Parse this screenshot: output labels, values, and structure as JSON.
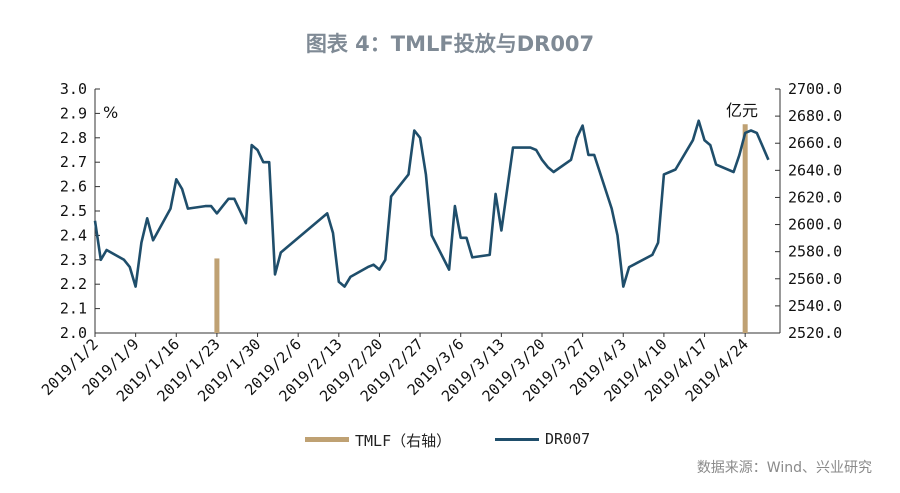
{
  "title": "图表 4：TMLF投放与DR007",
  "source": "数据来源：Wind、兴业研究",
  "chart_data": {
    "type": "line",
    "left_unit": "%",
    "right_unit": "亿元",
    "y_left": {
      "min": 2.0,
      "max": 3.0,
      "ticks": [
        "2.0",
        "2.1",
        "2.2",
        "2.3",
        "2.4",
        "2.5",
        "2.6",
        "2.7",
        "2.8",
        "2.9",
        "3.0"
      ]
    },
    "y_right": {
      "min": 2520,
      "max": 2700,
      "ticks": [
        "2520.0",
        "2540.0",
        "2560.0",
        "2580.0",
        "2600.0",
        "2620.0",
        "2640.0",
        "2660.0",
        "2680.0",
        "2700.0"
      ]
    },
    "x_ticks": [
      "2019/1/2",
      "2019/1/9",
      "2019/1/16",
      "2019/1/23",
      "2019/1/30",
      "2019/2/6",
      "2019/2/13",
      "2019/2/20",
      "2019/2/27",
      "2019/3/6",
      "2019/3/13",
      "2019/3/20",
      "2019/3/27",
      "2019/4/3",
      "2019/4/10",
      "2019/4/17",
      "2019/4/24"
    ],
    "x_range": [
      "2019/1/2",
      "2019/4/30"
    ],
    "series": [
      {
        "name": "TMLF（右轴）",
        "kind": "bar",
        "axis": "right",
        "color": "#bfa173",
        "points": [
          {
            "x": "2019/1/23",
            "y": 2575
          },
          {
            "x": "2019/4/24",
            "y": 2674
          }
        ]
      },
      {
        "name": "DR007",
        "kind": "line",
        "axis": "left",
        "color": "#1f4e6b",
        "points": [
          {
            "x": "2019/1/2",
            "y": 2.46
          },
          {
            "x": "2019/1/3",
            "y": 2.3
          },
          {
            "x": "2019/1/4",
            "y": 2.34
          },
          {
            "x": "2019/1/7",
            "y": 2.3
          },
          {
            "x": "2019/1/8",
            "y": 2.27
          },
          {
            "x": "2019/1/9",
            "y": 2.19
          },
          {
            "x": "2019/1/10",
            "y": 2.37
          },
          {
            "x": "2019/1/11",
            "y": 2.47
          },
          {
            "x": "2019/1/12",
            "y": 2.38
          },
          {
            "x": "2019/1/15",
            "y": 2.51
          },
          {
            "x": "2019/1/16",
            "y": 2.63
          },
          {
            "x": "2019/1/17",
            "y": 2.59
          },
          {
            "x": "2019/1/18",
            "y": 2.51
          },
          {
            "x": "2019/1/21",
            "y": 2.52
          },
          {
            "x": "2019/1/22",
            "y": 2.52
          },
          {
            "x": "2019/1/23",
            "y": 2.49
          },
          {
            "x": "2019/1/24",
            "y": 2.52
          },
          {
            "x": "2019/1/25",
            "y": 2.55
          },
          {
            "x": "2019/1/26",
            "y": 2.55
          },
          {
            "x": "2019/1/28",
            "y": 2.45
          },
          {
            "x": "2019/1/29",
            "y": 2.77
          },
          {
            "x": "2019/1/30",
            "y": 2.75
          },
          {
            "x": "2019/1/31",
            "y": 2.7
          },
          {
            "x": "2019/2/1",
            "y": 2.7
          },
          {
            "x": "2019/2/2",
            "y": 2.24
          },
          {
            "x": "2019/2/3",
            "y": 2.33
          },
          {
            "x": "2019/2/11",
            "y": 2.49
          },
          {
            "x": "2019/2/12",
            "y": 2.41
          },
          {
            "x": "2019/2/13",
            "y": 2.21
          },
          {
            "x": "2019/2/14",
            "y": 2.19
          },
          {
            "x": "2019/2/15",
            "y": 2.23
          },
          {
            "x": "2019/2/18",
            "y": 2.27
          },
          {
            "x": "2019/2/19",
            "y": 2.28
          },
          {
            "x": "2019/2/20",
            "y": 2.26
          },
          {
            "x": "2019/2/21",
            "y": 2.3
          },
          {
            "x": "2019/2/22",
            "y": 2.56
          },
          {
            "x": "2019/2/25",
            "y": 2.65
          },
          {
            "x": "2019/2/26",
            "y": 2.83
          },
          {
            "x": "2019/2/27",
            "y": 2.8
          },
          {
            "x": "2019/2/28",
            "y": 2.65
          },
          {
            "x": "2019/3/1",
            "y": 2.4
          },
          {
            "x": "2019/3/4",
            "y": 2.26
          },
          {
            "x": "2019/3/5",
            "y": 2.52
          },
          {
            "x": "2019/3/6",
            "y": 2.39
          },
          {
            "x": "2019/3/7",
            "y": 2.39
          },
          {
            "x": "2019/3/8",
            "y": 2.31
          },
          {
            "x": "2019/3/11",
            "y": 2.32
          },
          {
            "x": "2019/3/12",
            "y": 2.57
          },
          {
            "x": "2019/3/13",
            "y": 2.42
          },
          {
            "x": "2019/3/15",
            "y": 2.76
          },
          {
            "x": "2019/3/18",
            "y": 2.76
          },
          {
            "x": "2019/3/19",
            "y": 2.75
          },
          {
            "x": "2019/3/20",
            "y": 2.71
          },
          {
            "x": "2019/3/21",
            "y": 2.68
          },
          {
            "x": "2019/3/22",
            "y": 2.66
          },
          {
            "x": "2019/3/25",
            "y": 2.71
          },
          {
            "x": "2019/3/26",
            "y": 2.8
          },
          {
            "x": "2019/3/27",
            "y": 2.85
          },
          {
            "x": "2019/3/28",
            "y": 2.73
          },
          {
            "x": "2019/3/29",
            "y": 2.73
          },
          {
            "x": "2019/4/1",
            "y": 2.51
          },
          {
            "x": "2019/4/2",
            "y": 2.4
          },
          {
            "x": "2019/4/3",
            "y": 2.19
          },
          {
            "x": "2019/4/4",
            "y": 2.27
          },
          {
            "x": "2019/4/8",
            "y": 2.32
          },
          {
            "x": "2019/4/9",
            "y": 2.37
          },
          {
            "x": "2019/4/10",
            "y": 2.65
          },
          {
            "x": "2019/4/11",
            "y": 2.66
          },
          {
            "x": "2019/4/12",
            "y": 2.67
          },
          {
            "x": "2019/4/15",
            "y": 2.79
          },
          {
            "x": "2019/4/16",
            "y": 2.87
          },
          {
            "x": "2019/4/17",
            "y": 2.79
          },
          {
            "x": "2019/4/18",
            "y": 2.77
          },
          {
            "x": "2019/4/19",
            "y": 2.69
          },
          {
            "x": "2019/4/22",
            "y": 2.66
          },
          {
            "x": "2019/4/23",
            "y": 2.73
          },
          {
            "x": "2019/4/24",
            "y": 2.82
          },
          {
            "x": "2019/4/25",
            "y": 2.83
          },
          {
            "x": "2019/4/26",
            "y": 2.82
          },
          {
            "x": "2019/4/28",
            "y": 2.71
          }
        ]
      }
    ],
    "legend_position": "bottom",
    "grid": false
  }
}
